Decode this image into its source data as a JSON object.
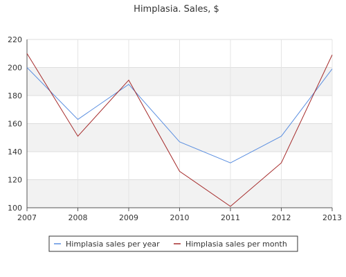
{
  "chart_data": {
    "type": "line",
    "title": "Himplasia. Sales, $",
    "x": [
      "2007",
      "2008",
      "2009",
      "2010",
      "2011",
      "2012",
      "2013"
    ],
    "y_ticks": [
      "100",
      "120",
      "140",
      "160",
      "180",
      "200",
      "220"
    ],
    "ylim": [
      100,
      220
    ],
    "grid": true,
    "legend_position": "bottom",
    "series": [
      {
        "name": "Himplasia sales per year",
        "color": "#5b8fe0",
        "values": [
          200,
          163,
          188,
          147,
          132,
          151,
          199
        ]
      },
      {
        "name": "Himplasia sales per month",
        "color": "#a52a2a",
        "values": [
          210,
          151,
          191,
          126,
          101,
          132,
          209
        ]
      }
    ]
  }
}
